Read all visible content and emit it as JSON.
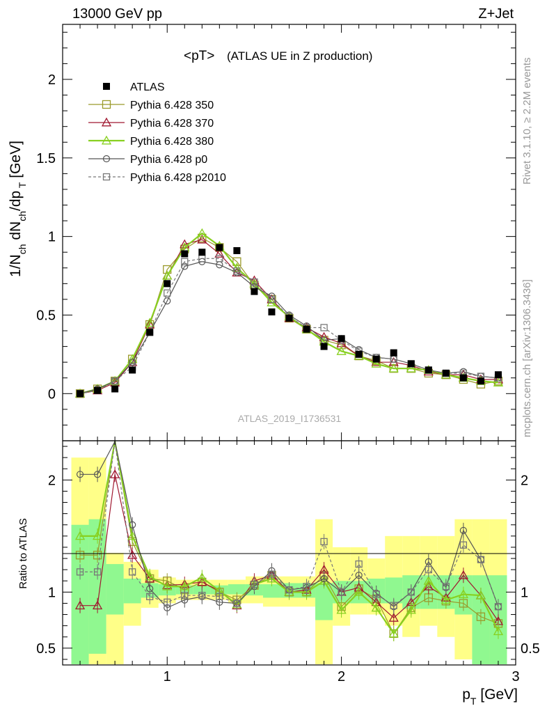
{
  "header": {
    "left": "13000 GeV pp",
    "right": "Z+Jet"
  },
  "plot_title_main": "<pT>",
  "plot_title_sub": "(ATLAS UE in Z production)",
  "side_text_top": "Rivet 3.1.10, ≥ 2.2M events",
  "side_text_bottom": "mcplots.cern.ch [arXiv:1306.3436]",
  "analysis_label": "ATLAS_2019_I1736531",
  "main_ylabel": "1/N_ch dN_ch/dp_T [GeV]",
  "ratio_ylabel": "Ratio to ATLAS",
  "xlabel": "p_T [GeV]",
  "colors": {
    "ATLAS": "#000000",
    "p350": "#9a9a2a",
    "p370": "#a01830",
    "p380": "#88d020",
    "p0": "#555555",
    "p2010": "#777777",
    "band_inner": "#90f890",
    "band_outer": "#ffff88"
  },
  "chart_data": {
    "type": "line",
    "x": [
      0.5,
      0.6,
      0.7,
      0.8,
      0.9,
      1.0,
      1.1,
      1.2,
      1.3,
      1.4,
      1.5,
      1.6,
      1.7,
      1.8,
      1.9,
      2.0,
      2.1,
      2.2,
      2.3,
      2.4,
      2.5,
      2.6,
      2.7,
      2.8,
      2.9
    ],
    "xlim": [
      0.4,
      3.0
    ],
    "xticks": [
      "1",
      "2",
      "3"
    ],
    "main": {
      "ylim": [
        -0.3,
        2.35
      ],
      "yticks": [
        "0",
        "0.5",
        "1",
        "1.5",
        "2"
      ],
      "series": [
        {
          "name": "ATLAS",
          "key": "ATLAS",
          "values": [
            0.0,
            0.02,
            0.03,
            0.15,
            0.39,
            0.7,
            0.89,
            0.9,
            0.93,
            0.91,
            0.65,
            0.52,
            0.48,
            0.41,
            0.3,
            0.35,
            0.25,
            0.22,
            0.26,
            0.19,
            0.15,
            0.13,
            0.1,
            0.08,
            0.12
          ]
        },
        {
          "name": "Pythia 6.428 350",
          "key": "p350",
          "values": [
            0.0,
            0.03,
            0.08,
            0.22,
            0.44,
            0.79,
            0.92,
            0.99,
            0.93,
            0.84,
            0.69,
            0.6,
            0.48,
            0.41,
            0.34,
            0.31,
            0.24,
            0.21,
            0.16,
            0.16,
            0.13,
            0.12,
            0.09,
            0.06,
            0.08
          ]
        },
        {
          "name": "Pythia 6.428 370",
          "key": "p370",
          "values": [
            0.0,
            0.02,
            0.07,
            0.2,
            0.44,
            0.75,
            0.95,
            0.98,
            0.89,
            0.77,
            0.72,
            0.6,
            0.48,
            0.42,
            0.36,
            0.32,
            0.24,
            0.2,
            0.2,
            0.18,
            0.14,
            0.12,
            0.12,
            0.09,
            0.09
          ]
        },
        {
          "name": "Pythia 6.428 380",
          "key": "p380",
          "values": [
            0.0,
            0.03,
            0.08,
            0.22,
            0.45,
            0.75,
            0.93,
            1.02,
            0.94,
            0.8,
            0.7,
            0.58,
            0.49,
            0.41,
            0.33,
            0.27,
            0.24,
            0.19,
            0.16,
            0.16,
            0.15,
            0.12,
            0.1,
            0.08,
            0.07
          ]
        },
        {
          "name": "Pythia 6.428 p0",
          "key": "p0",
          "values": [
            0.0,
            0.03,
            0.08,
            0.2,
            0.39,
            0.59,
            0.81,
            0.84,
            0.82,
            0.77,
            0.68,
            0.62,
            0.5,
            0.43,
            0.34,
            0.35,
            0.28,
            0.23,
            0.22,
            0.19,
            0.15,
            0.13,
            0.14,
            0.11,
            0.1
          ]
        },
        {
          "name": "Pythia 6.428 p2010",
          "key": "p2010",
          "values": [
            0.0,
            0.02,
            0.08,
            0.17,
            0.39,
            0.64,
            0.84,
            0.86,
            0.86,
            0.78,
            0.71,
            0.6,
            0.49,
            0.42,
            0.42,
            0.34,
            0.27,
            0.23,
            0.22,
            0.19,
            0.15,
            0.13,
            0.13,
            0.11,
            0.1
          ]
        }
      ]
    },
    "ratio": {
      "ylim": [
        0.35,
        2.35
      ],
      "yticks": [
        "0.5",
        "1",
        "2"
      ],
      "band_inner": [
        [
          0.35,
          1.6
        ],
        [
          0.45,
          1.65
        ],
        [
          0.8,
          1.25
        ],
        [
          0.9,
          1.12
        ],
        [
          0.95,
          1.08
        ],
        [
          0.97,
          1.07
        ],
        [
          0.98,
          1.06
        ],
        [
          0.98,
          1.06
        ],
        [
          0.98,
          1.06
        ],
        [
          0.98,
          1.07
        ],
        [
          0.97,
          1.07
        ],
        [
          0.95,
          1.07
        ],
        [
          0.95,
          1.08
        ],
        [
          0.95,
          1.08
        ],
        [
          0.75,
          1.08
        ],
        [
          0.9,
          1.1
        ],
        [
          0.9,
          1.1
        ],
        [
          0.9,
          1.12
        ],
        [
          0.9,
          1.13
        ],
        [
          0.85,
          1.15
        ],
        [
          0.85,
          1.15
        ],
        [
          0.85,
          1.15
        ],
        [
          0.8,
          1.15
        ],
        [
          0.3,
          1.15
        ],
        [
          0.3,
          1.15
        ]
      ],
      "band_outer": [
        [
          0.3,
          2.2
        ],
        [
          0.3,
          2.2
        ],
        [
          0.35,
          1.35
        ],
        [
          0.7,
          1.27
        ],
        [
          0.86,
          1.2
        ],
        [
          0.9,
          1.13
        ],
        [
          0.93,
          1.11
        ],
        [
          0.93,
          1.11
        ],
        [
          0.93,
          1.11
        ],
        [
          0.9,
          1.11
        ],
        [
          0.9,
          1.14
        ],
        [
          0.87,
          1.14
        ],
        [
          0.87,
          1.14
        ],
        [
          0.87,
          1.14
        ],
        [
          0.35,
          1.65
        ],
        [
          0.7,
          1.4
        ],
        [
          0.8,
          1.4
        ],
        [
          0.8,
          1.3
        ],
        [
          0.7,
          1.5
        ],
        [
          0.6,
          1.5
        ],
        [
          0.7,
          1.5
        ],
        [
          0.6,
          1.5
        ],
        [
          0.4,
          1.65
        ],
        [
          0.3,
          1.65
        ],
        [
          0.3,
          1.65
        ]
      ],
      "series": [
        {
          "key": "p350",
          "values": [
            1.33,
            1.33,
            2.4,
            1.45,
            1.12,
            1.1,
            1.02,
            1.09,
            1.0,
            0.93,
            1.06,
            1.15,
            1.0,
            1.0,
            1.15,
            0.87,
            1.03,
            0.94,
            0.63,
            0.86,
            0.95,
            0.92,
            0.9,
            0.78,
            0.72
          ]
        },
        {
          "key": "p370",
          "values": [
            0.88,
            0.88,
            2.05,
            1.33,
            1.12,
            1.06,
            1.07,
            1.09,
            1.01,
            0.88,
            1.1,
            1.15,
            1.0,
            1.02,
            1.2,
            1.0,
            1.04,
            0.91,
            0.77,
            0.91,
            1.05,
            0.95,
            1.15,
            0.97,
            0.74
          ]
        },
        {
          "key": "p380",
          "values": [
            1.5,
            1.5,
            2.5,
            1.5,
            1.14,
            1.05,
            1.05,
            1.13,
            1.01,
            0.89,
            1.07,
            1.12,
            1.0,
            1.0,
            1.1,
            0.84,
            1.0,
            0.86,
            0.63,
            0.84,
            1.1,
            0.93,
            0.98,
            0.97,
            0.65
          ]
        },
        {
          "key": "p0",
          "values": [
            2.05,
            2.05,
            2.45,
            1.6,
            1.03,
            0.86,
            0.93,
            0.96,
            0.91,
            0.9,
            1.05,
            1.19,
            1.02,
            1.04,
            1.12,
            1.0,
            1.15,
            0.99,
            0.87,
            1.0,
            1.27,
            1.04,
            1.55,
            1.29,
            0.87
          ]
        },
        {
          "key": "p2010",
          "values": [
            1.18,
            1.18,
            2.45,
            1.18,
            0.96,
            0.91,
            0.97,
            0.97,
            0.96,
            0.9,
            1.07,
            1.16,
            1.02,
            1.05,
            1.45,
            1.0,
            1.25,
            0.98,
            0.88,
            1.0,
            1.2,
            1.05,
            1.42,
            1.29,
            0.87
          ]
        }
      ]
    }
  }
}
